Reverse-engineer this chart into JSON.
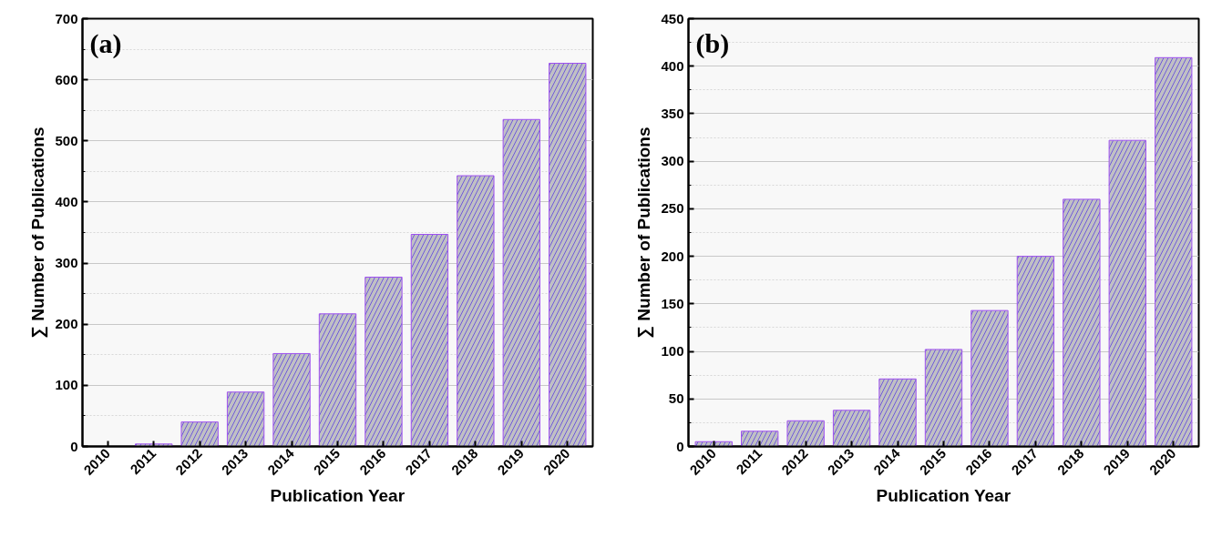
{
  "chart_data": [
    {
      "type": "bar",
      "xlabel": "Publication Year",
      "ylabel": "∑ Number of Publications",
      "annotations": [
        "(a)"
      ],
      "categories": [
        "2010",
        "2011",
        "2012",
        "2013",
        "2014",
        "2015",
        "2016",
        "2017",
        "2018",
        "2019",
        "2020"
      ],
      "values": [
        0,
        4,
        40,
        89,
        152,
        217,
        277,
        347,
        443,
        535,
        627
      ],
      "color": "#c0c0c4",
      "ylim": [
        0,
        700
      ],
      "yticks": [
        0,
        100,
        200,
        300,
        400,
        500,
        600,
        700
      ],
      "grid": "y"
    },
    {
      "type": "bar",
      "xlabel": "Publication Year",
      "ylabel": "∑ Number of Publications",
      "annotations": [
        "(b)"
      ],
      "categories": [
        "2010",
        "2011",
        "2012",
        "2013",
        "2014",
        "2015",
        "2016",
        "2017",
        "2018",
        "2019",
        "2020"
      ],
      "values": [
        5,
        16,
        27,
        38,
        71,
        102,
        143,
        200,
        260,
        322,
        409
      ],
      "color": "#c0c0c4",
      "ylim": [
        0,
        450
      ],
      "yticks": [
        0,
        50,
        100,
        150,
        200,
        250,
        300,
        350,
        400,
        450
      ],
      "grid": "y"
    }
  ]
}
